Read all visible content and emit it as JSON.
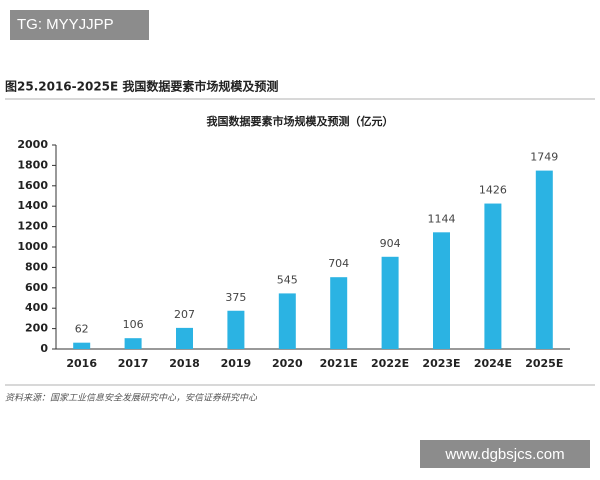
{
  "watermarks": [
    "TG: MYYJJPP",
    "www.dgbsjcs.com"
  ],
  "figure_caption": "图25.2016-2025E 我国数据要素市场规模及预测",
  "source": "资料来源：国家工业信息安全发展研究中心，安信证券研究中心",
  "chart_data": {
    "type": "bar",
    "title": "我国数据要素市场规模及预测（亿元）",
    "categories": [
      "2016",
      "2017",
      "2018",
      "2019",
      "2020",
      "2021E",
      "2022E",
      "2023E",
      "2024E",
      "2025E"
    ],
    "values": [
      62,
      106,
      207,
      375,
      545,
      704,
      904,
      1144,
      1426,
      1749
    ],
    "color": "#2bb3e3",
    "ylim": [
      0,
      2000
    ],
    "yticks": [
      0,
      200,
      400,
      600,
      800,
      1000,
      1200,
      1400,
      1600,
      1800,
      2000
    ],
    "grid": false
  }
}
